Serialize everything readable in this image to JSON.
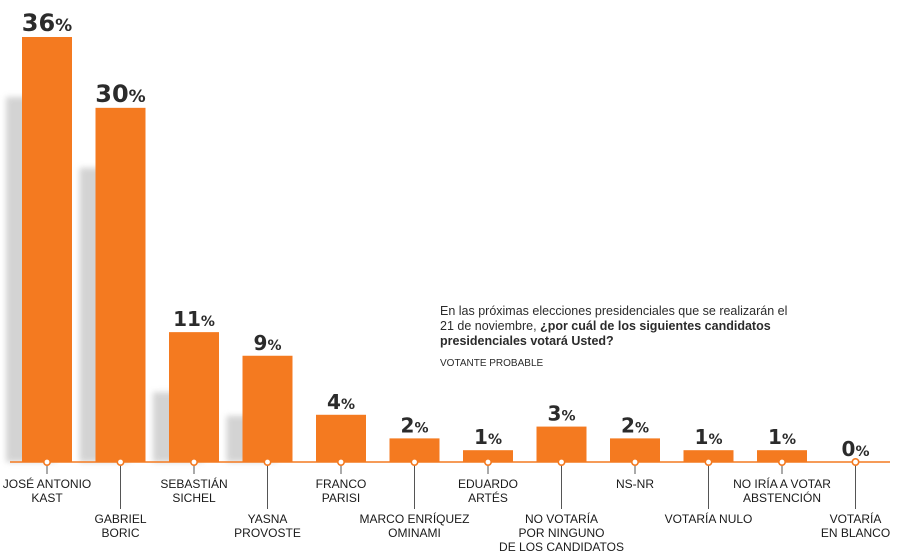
{
  "chart_data": {
    "type": "bar",
    "question_prefix": "En las próximas elecciones presidenciales que se realizarán el 21 de noviembre, ",
    "question_bold": "¿por cuál de los siguientes candidatos presidenciales votará Usted?",
    "note": "VOTANTE PROBABLE",
    "ylim": [
      0,
      36
    ],
    "value_suffix": "%",
    "colors": {
      "bar": "#f47a20",
      "shadow": "#cfcfcf",
      "axis": "#f47a20",
      "text": "#2b2b2b"
    },
    "categories": [
      {
        "lines": [
          "JOSÉ ANTONIO",
          "KAST"
        ],
        "value": 36
      },
      {
        "lines": [
          "GABRIEL",
          "BORIC"
        ],
        "value": 30
      },
      {
        "lines": [
          "SEBASTIÁN",
          "SICHEL"
        ],
        "value": 11
      },
      {
        "lines": [
          "YASNA",
          "PROVOSTE"
        ],
        "value": 9
      },
      {
        "lines": [
          "FRANCO",
          "PARISI"
        ],
        "value": 4
      },
      {
        "lines": [
          "MARCO ENRÍQUEZ",
          "OMINAMI"
        ],
        "value": 2
      },
      {
        "lines": [
          "EDUARDO",
          "ARTÉS"
        ],
        "value": 1
      },
      {
        "lines": [
          "NO VOTARÍA",
          "POR NINGUNO",
          "DE LOS CANDIDATOS"
        ],
        "value": 3
      },
      {
        "lines": [
          "NS-NR"
        ],
        "value": 2
      },
      {
        "lines": [
          "VOTARÍA NULO"
        ],
        "value": 1
      },
      {
        "lines": [
          "NO IRÍA A VOTAR",
          "ABSTENCIÓN"
        ],
        "value": 1
      },
      {
        "lines": [
          "VOTARÍA",
          "EN BLANCO"
        ],
        "value": 0
      }
    ]
  }
}
